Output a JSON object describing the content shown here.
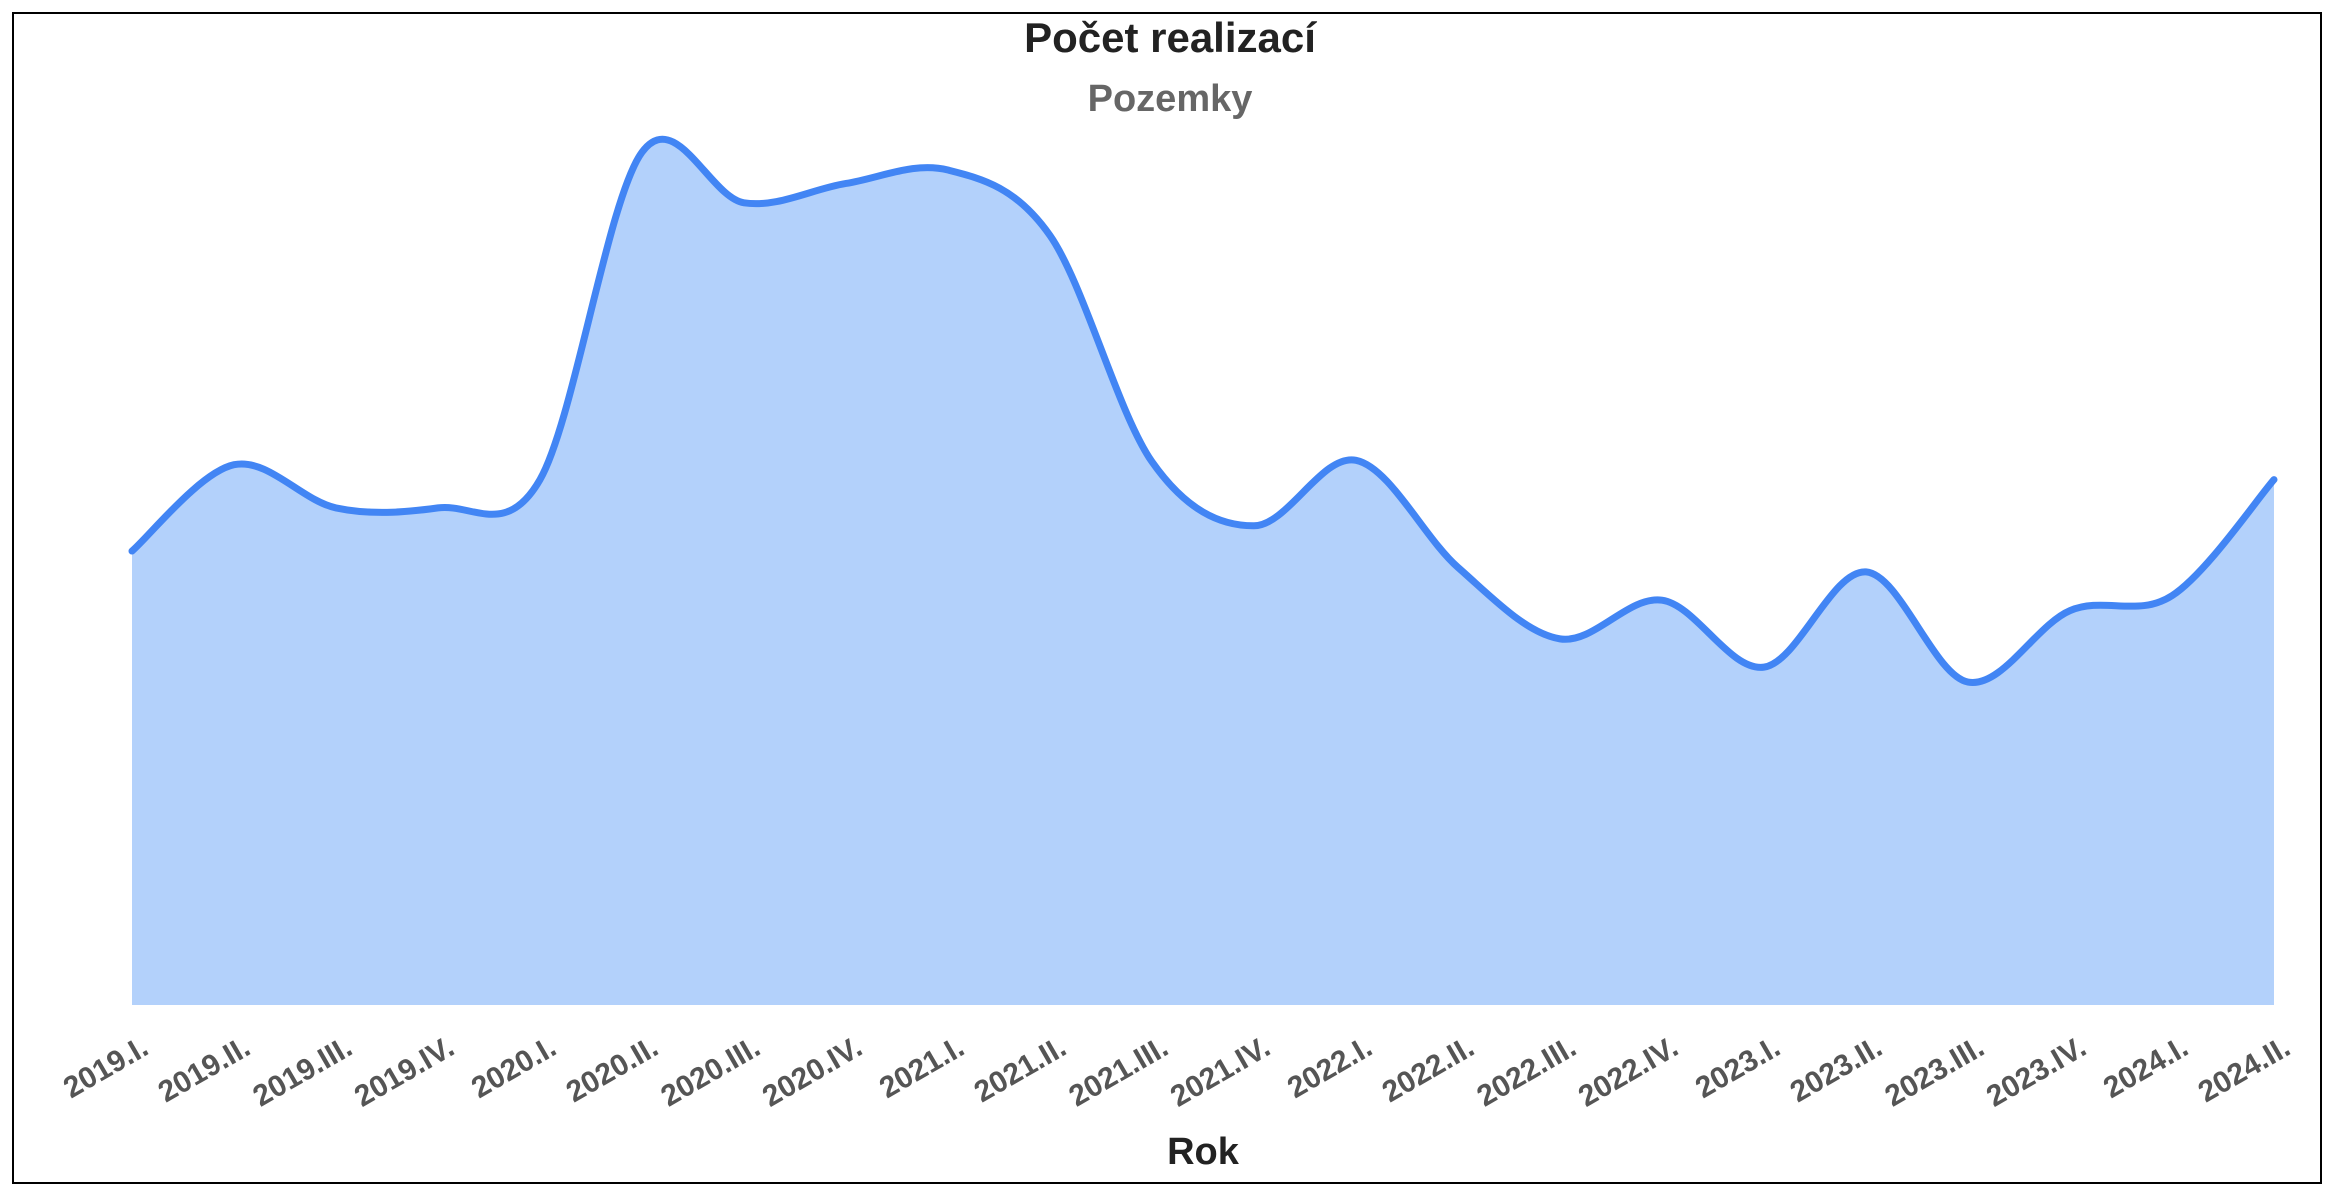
{
  "chart_data": {
    "type": "area",
    "title": "Počet realizací",
    "subtitle": "Pozemky",
    "x_label": "Rok",
    "categories": [
      "2019.I.",
      "2019.II.",
      "2019.III.",
      "2019.IV.",
      "2020.I.",
      "2020.II.",
      "2020.III.",
      "2020.IV.",
      "2021.I.",
      "2021.II.",
      "2021.III.",
      "2021.IV.",
      "2022.I.",
      "2022.II.",
      "2022.III.",
      "2022.IV.",
      "2023.I.",
      "2023.II.",
      "2023.III.",
      "2023.IV.",
      "2024.I.",
      "2024.II."
    ],
    "values": [
      305,
      363,
      334,
      334,
      353,
      573,
      539,
      552,
      561,
      517,
      365,
      322,
      366,
      294,
      246,
      272,
      227,
      291,
      217,
      265,
      275,
      353
    ],
    "color": "#4285f4",
    "fill_color": "#b3d1fb",
    "ylim": [
      0,
      600
    ]
  }
}
